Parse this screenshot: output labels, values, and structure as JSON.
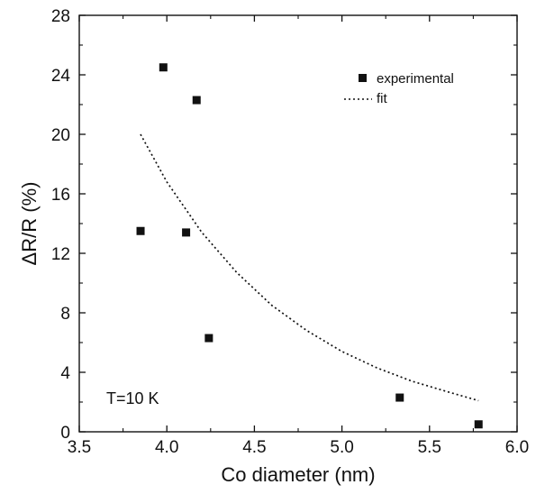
{
  "chart_data": {
    "type": "scatter",
    "xlabel": "Co diameter (nm)",
    "ylabel": "ΔR/R (%)",
    "xlim": [
      3.5,
      6.0
    ],
    "ylim": [
      0,
      28
    ],
    "x_ticks": [
      3.5,
      4.0,
      4.5,
      5.0,
      5.5,
      6.0
    ],
    "x_tick_labels": [
      "3.5",
      "4.0",
      "4.5",
      "5.0",
      "5.5",
      "6.0"
    ],
    "y_ticks": [
      0,
      4,
      8,
      12,
      16,
      20,
      24,
      28
    ],
    "y_tick_labels": [
      "0",
      "4",
      "8",
      "12",
      "16",
      "20",
      "24",
      "28"
    ],
    "grid": false,
    "legend_position": "top-right",
    "annotation": "T=10 K",
    "series": [
      {
        "name": "experimental",
        "marker": "square",
        "color": "#111111",
        "points": [
          {
            "x": 3.85,
            "y": 13.5
          },
          {
            "x": 3.98,
            "y": 24.5
          },
          {
            "x": 4.11,
            "y": 13.4
          },
          {
            "x": 4.17,
            "y": 22.3
          },
          {
            "x": 4.24,
            "y": 6.3
          },
          {
            "x": 5.33,
            "y": 2.3
          },
          {
            "x": 5.78,
            "y": 0.5
          }
        ]
      },
      {
        "name": "fit",
        "style": "dotted",
        "color": "#111111",
        "points": [
          {
            "x": 3.85,
            "y": 20.0
          },
          {
            "x": 4.0,
            "y": 16.8
          },
          {
            "x": 4.2,
            "y": 13.4
          },
          {
            "x": 4.4,
            "y": 10.7
          },
          {
            "x": 4.6,
            "y": 8.5
          },
          {
            "x": 4.8,
            "y": 6.8
          },
          {
            "x": 5.0,
            "y": 5.4
          },
          {
            "x": 5.2,
            "y": 4.3
          },
          {
            "x": 5.4,
            "y": 3.4
          },
          {
            "x": 5.6,
            "y": 2.7
          },
          {
            "x": 5.78,
            "y": 2.1
          }
        ]
      }
    ]
  }
}
